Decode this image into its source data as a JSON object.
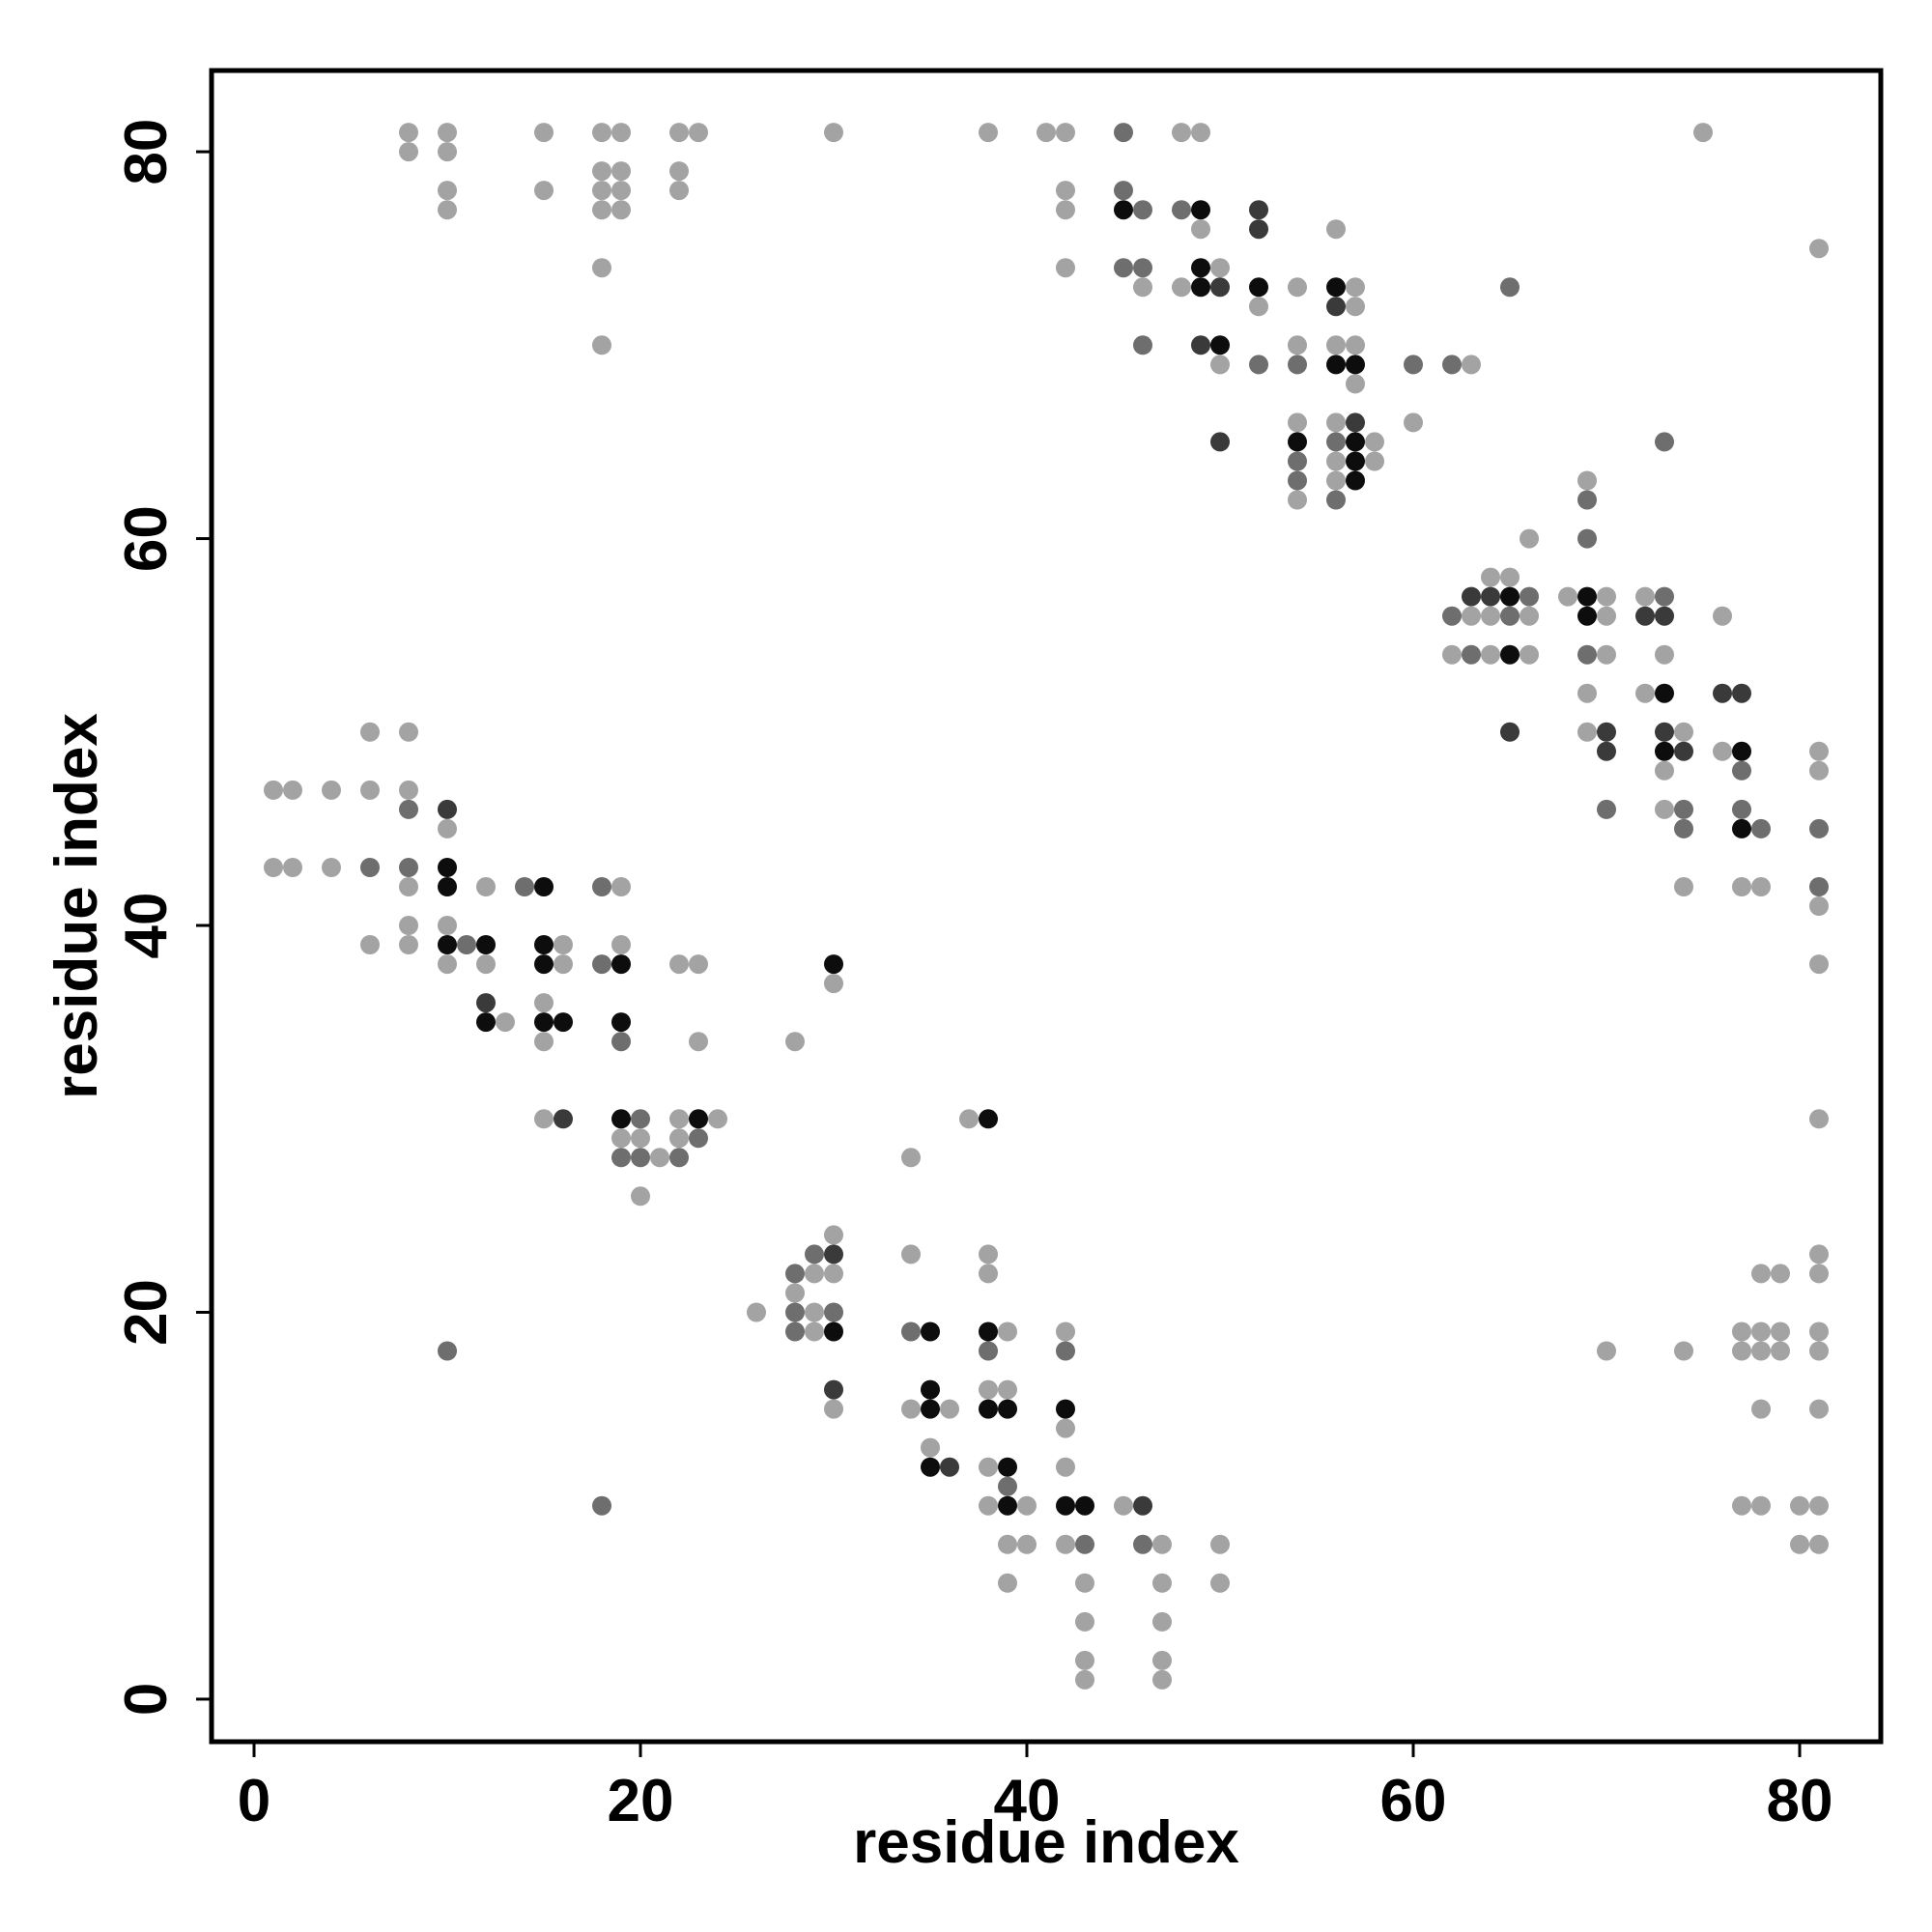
{
  "chart_data": {
    "type": "scatter",
    "title": "",
    "xlabel": "residue index",
    "ylabel": "residue index",
    "xlim": [
      -2.2,
      84.2
    ],
    "ylim": [
      -2.2,
      84.2
    ],
    "xticks": [
      0,
      20,
      40,
      60,
      80
    ],
    "yticks": [
      0,
      20,
      40,
      60,
      80
    ],
    "grid": false,
    "legend": "none",
    "colors": {
      "light": "#a3a3a3",
      "mid": "#6e6e6e",
      "dark": "#3a3a3a",
      "black": "#0d0d0d"
    },
    "points": [
      [
        1,
        47,
        "light"
      ],
      [
        2,
        47,
        "light"
      ],
      [
        4,
        47,
        "light"
      ],
      [
        6,
        47,
        "light"
      ],
      [
        8,
        47,
        "light"
      ],
      [
        1,
        43,
        "light"
      ],
      [
        2,
        43,
        "light"
      ],
      [
        4,
        43,
        "light"
      ],
      [
        6,
        43,
        "mid"
      ],
      [
        6,
        50,
        "light"
      ],
      [
        6,
        39,
        "light"
      ],
      [
        8,
        50,
        "light"
      ],
      [
        8,
        46,
        "mid"
      ],
      [
        8,
        43,
        "mid"
      ],
      [
        8,
        42,
        "light"
      ],
      [
        8,
        40,
        "light"
      ],
      [
        8,
        39,
        "light"
      ],
      [
        10,
        46,
        "dark"
      ],
      [
        10,
        45,
        "light"
      ],
      [
        10,
        43,
        "black"
      ],
      [
        10,
        42,
        "black"
      ],
      [
        10,
        40,
        "light"
      ],
      [
        10,
        39,
        "black"
      ],
      [
        10,
        38,
        "light"
      ],
      [
        11,
        39,
        "mid"
      ],
      [
        12,
        42,
        "light"
      ],
      [
        12,
        39,
        "black"
      ],
      [
        12,
        38,
        "light"
      ],
      [
        12,
        36,
        "dark"
      ],
      [
        12,
        35,
        "black"
      ],
      [
        13,
        35,
        "light"
      ],
      [
        14,
        42,
        "mid"
      ],
      [
        15,
        42,
        "black"
      ],
      [
        15,
        39,
        "black"
      ],
      [
        15,
        38,
        "black"
      ],
      [
        15,
        36,
        "light"
      ],
      [
        15,
        35,
        "black"
      ],
      [
        15,
        34,
        "light"
      ],
      [
        15,
        30,
        "light"
      ],
      [
        16,
        39,
        "light"
      ],
      [
        16,
        38,
        "light"
      ],
      [
        16,
        35,
        "black"
      ],
      [
        16,
        30,
        "dark"
      ],
      [
        18,
        42,
        "mid"
      ],
      [
        18,
        38,
        "mid"
      ],
      [
        19,
        42,
        "light"
      ],
      [
        19,
        39,
        "light"
      ],
      [
        19,
        38,
        "black"
      ],
      [
        19,
        35,
        "black"
      ],
      [
        19,
        34,
        "mid"
      ],
      [
        19,
        30,
        "black"
      ],
      [
        19,
        29,
        "light"
      ],
      [
        19,
        28,
        "mid"
      ],
      [
        20,
        30,
        "mid"
      ],
      [
        20,
        29,
        "light"
      ],
      [
        20,
        28,
        "mid"
      ],
      [
        20,
        26,
        "light"
      ],
      [
        21,
        28,
        "light"
      ],
      [
        22,
        38,
        "light"
      ],
      [
        22,
        30,
        "light"
      ],
      [
        22,
        29,
        "light"
      ],
      [
        22,
        28,
        "mid"
      ],
      [
        23,
        38,
        "light"
      ],
      [
        23,
        34,
        "light"
      ],
      [
        23,
        30,
        "black"
      ],
      [
        23,
        29,
        "mid"
      ],
      [
        24,
        30,
        "light"
      ],
      [
        26,
        20,
        "light"
      ],
      [
        28,
        34,
        "light"
      ],
      [
        28,
        22,
        "mid"
      ],
      [
        28,
        21,
        "light"
      ],
      [
        28,
        20,
        "mid"
      ],
      [
        28,
        19,
        "mid"
      ],
      [
        29,
        23,
        "mid"
      ],
      [
        29,
        22,
        "light"
      ],
      [
        29,
        20,
        "light"
      ],
      [
        29,
        19,
        "light"
      ],
      [
        30,
        38,
        "black"
      ],
      [
        30,
        37,
        "light"
      ],
      [
        30,
        24,
        "light"
      ],
      [
        30,
        23,
        "dark"
      ],
      [
        30,
        22,
        "light"
      ],
      [
        30,
        20,
        "mid"
      ],
      [
        30,
        19,
        "black"
      ],
      [
        30,
        16,
        "dark"
      ],
      [
        30,
        15,
        "light"
      ],
      [
        34,
        28,
        "light"
      ],
      [
        34,
        23,
        "light"
      ],
      [
        34,
        19,
        "mid"
      ],
      [
        34,
        15,
        "light"
      ],
      [
        35,
        19,
        "black"
      ],
      [
        35,
        16,
        "black"
      ],
      [
        35,
        15,
        "black"
      ],
      [
        35,
        13,
        "light"
      ],
      [
        35,
        12,
        "black"
      ],
      [
        36,
        15,
        "light"
      ],
      [
        36,
        12,
        "dark"
      ],
      [
        37,
        30,
        "light"
      ],
      [
        38,
        30,
        "black"
      ],
      [
        38,
        23,
        "light"
      ],
      [
        38,
        22,
        "light"
      ],
      [
        38,
        19,
        "black"
      ],
      [
        38,
        18,
        "mid"
      ],
      [
        38,
        16,
        "light"
      ],
      [
        38,
        15,
        "black"
      ],
      [
        38,
        12,
        "light"
      ],
      [
        38,
        10,
        "light"
      ],
      [
        39,
        19,
        "light"
      ],
      [
        39,
        16,
        "light"
      ],
      [
        39,
        15,
        "black"
      ],
      [
        39,
        12,
        "black"
      ],
      [
        39,
        11,
        "mid"
      ],
      [
        39,
        10,
        "black"
      ],
      [
        39,
        8,
        "light"
      ],
      [
        39,
        6,
        "light"
      ],
      [
        40,
        10,
        "light"
      ],
      [
        40,
        8,
        "light"
      ],
      [
        42,
        19,
        "light"
      ],
      [
        42,
        18,
        "mid"
      ],
      [
        42,
        15,
        "black"
      ],
      [
        42,
        14,
        "light"
      ],
      [
        42,
        12,
        "light"
      ],
      [
        42,
        10,
        "black"
      ],
      [
        42,
        8,
        "light"
      ],
      [
        43,
        10,
        "black"
      ],
      [
        43,
        8,
        "mid"
      ],
      [
        43,
        6,
        "light"
      ],
      [
        43,
        4,
        "light"
      ],
      [
        43,
        2,
        "light"
      ],
      [
        43,
        1,
        "light"
      ],
      [
        45,
        10,
        "light"
      ],
      [
        46,
        10,
        "dark"
      ],
      [
        46,
        8,
        "mid"
      ],
      [
        47,
        8,
        "light"
      ],
      [
        47,
        6,
        "light"
      ],
      [
        47,
        4,
        "light"
      ],
      [
        47,
        2,
        "light"
      ],
      [
        47,
        1,
        "light"
      ],
      [
        50,
        8,
        "light"
      ],
      [
        50,
        6,
        "light"
      ],
      [
        10,
        18,
        "mid"
      ],
      [
        18,
        10,
        "mid"
      ],
      [
        8,
        81,
        "light"
      ],
      [
        8,
        80,
        "light"
      ],
      [
        10,
        81,
        "light"
      ],
      [
        10,
        80,
        "light"
      ],
      [
        10,
        78,
        "light"
      ],
      [
        10,
        77,
        "light"
      ],
      [
        15,
        81,
        "light"
      ],
      [
        15,
        78,
        "light"
      ],
      [
        18,
        81,
        "light"
      ],
      [
        18,
        79,
        "light"
      ],
      [
        18,
        78,
        "light"
      ],
      [
        18,
        77,
        "light"
      ],
      [
        18,
        74,
        "light"
      ],
      [
        18,
        70,
        "light"
      ],
      [
        19,
        81,
        "light"
      ],
      [
        19,
        79,
        "light"
      ],
      [
        19,
        78,
        "light"
      ],
      [
        19,
        77,
        "light"
      ],
      [
        22,
        81,
        "light"
      ],
      [
        22,
        79,
        "light"
      ],
      [
        22,
        78,
        "light"
      ],
      [
        23,
        81,
        "light"
      ],
      [
        30,
        81,
        "light"
      ],
      [
        38,
        81,
        "light"
      ],
      [
        41,
        81,
        "light"
      ],
      [
        42,
        81,
        "light"
      ],
      [
        45,
        81,
        "mid"
      ],
      [
        48,
        81,
        "light"
      ],
      [
        49,
        81,
        "light"
      ],
      [
        75,
        81,
        "light"
      ],
      [
        42,
        78,
        "light"
      ],
      [
        42,
        77,
        "light"
      ],
      [
        42,
        74,
        "light"
      ],
      [
        45,
        78,
        "mid"
      ],
      [
        45,
        77,
        "black"
      ],
      [
        45,
        74,
        "mid"
      ],
      [
        46,
        77,
        "mid"
      ],
      [
        46,
        74,
        "mid"
      ],
      [
        46,
        73,
        "light"
      ],
      [
        46,
        70,
        "mid"
      ],
      [
        48,
        77,
        "mid"
      ],
      [
        48,
        73,
        "light"
      ],
      [
        49,
        77,
        "black"
      ],
      [
        49,
        76,
        "light"
      ],
      [
        49,
        74,
        "black"
      ],
      [
        49,
        73,
        "black"
      ],
      [
        49,
        70,
        "dark"
      ],
      [
        50,
        74,
        "light"
      ],
      [
        50,
        73,
        "dark"
      ],
      [
        50,
        70,
        "black"
      ],
      [
        50,
        69,
        "light"
      ],
      [
        50,
        65,
        "dark"
      ],
      [
        52,
        77,
        "dark"
      ],
      [
        52,
        76,
        "dark"
      ],
      [
        52,
        73,
        "black"
      ],
      [
        52,
        72,
        "light"
      ],
      [
        52,
        69,
        "mid"
      ],
      [
        54,
        73,
        "light"
      ],
      [
        54,
        70,
        "light"
      ],
      [
        54,
        69,
        "mid"
      ],
      [
        54,
        66,
        "light"
      ],
      [
        54,
        65,
        "black"
      ],
      [
        54,
        64,
        "mid"
      ],
      [
        54,
        63,
        "mid"
      ],
      [
        54,
        62,
        "light"
      ],
      [
        56,
        76,
        "light"
      ],
      [
        56,
        73,
        "black"
      ],
      [
        56,
        72,
        "dark"
      ],
      [
        56,
        70,
        "light"
      ],
      [
        56,
        69,
        "black"
      ],
      [
        56,
        66,
        "light"
      ],
      [
        56,
        65,
        "mid"
      ],
      [
        56,
        64,
        "light"
      ],
      [
        56,
        63,
        "light"
      ],
      [
        56,
        62,
        "mid"
      ],
      [
        57,
        73,
        "light"
      ],
      [
        57,
        72,
        "light"
      ],
      [
        57,
        70,
        "light"
      ],
      [
        57,
        69,
        "black"
      ],
      [
        57,
        68,
        "light"
      ],
      [
        57,
        66,
        "dark"
      ],
      [
        57,
        65,
        "black"
      ],
      [
        57,
        64,
        "black"
      ],
      [
        57,
        63,
        "black"
      ],
      [
        58,
        65,
        "light"
      ],
      [
        58,
        64,
        "light"
      ],
      [
        60,
        69,
        "mid"
      ],
      [
        60,
        66,
        "light"
      ],
      [
        62,
        69,
        "mid"
      ],
      [
        63,
        69,
        "light"
      ],
      [
        65,
        73,
        "mid"
      ],
      [
        62,
        56,
        "mid"
      ],
      [
        62,
        54,
        "light"
      ],
      [
        63,
        57,
        "dark"
      ],
      [
        63,
        56,
        "light"
      ],
      [
        63,
        54,
        "mid"
      ],
      [
        64,
        58,
        "light"
      ],
      [
        64,
        57,
        "dark"
      ],
      [
        64,
        56,
        "light"
      ],
      [
        64,
        54,
        "light"
      ],
      [
        65,
        58,
        "light"
      ],
      [
        65,
        57,
        "black"
      ],
      [
        65,
        56,
        "mid"
      ],
      [
        65,
        54,
        "black"
      ],
      [
        65,
        50,
        "dark"
      ],
      [
        66,
        60,
        "light"
      ],
      [
        66,
        57,
        "mid"
      ],
      [
        66,
        56,
        "light"
      ],
      [
        66,
        54,
        "light"
      ],
      [
        68,
        57,
        "light"
      ],
      [
        69,
        63,
        "light"
      ],
      [
        69,
        62,
        "mid"
      ],
      [
        69,
        60,
        "mid"
      ],
      [
        69,
        57,
        "black"
      ],
      [
        69,
        56,
        "black"
      ],
      [
        69,
        54,
        "mid"
      ],
      [
        69,
        52,
        "light"
      ],
      [
        69,
        50,
        "light"
      ],
      [
        70,
        57,
        "light"
      ],
      [
        70,
        56,
        "light"
      ],
      [
        70,
        54,
        "light"
      ],
      [
        70,
        50,
        "dark"
      ],
      [
        70,
        49,
        "dark"
      ],
      [
        70,
        46,
        "mid"
      ],
      [
        72,
        57,
        "light"
      ],
      [
        72,
        56,
        "dark"
      ],
      [
        72,
        52,
        "light"
      ],
      [
        73,
        65,
        "mid"
      ],
      [
        73,
        57,
        "mid"
      ],
      [
        73,
        56,
        "dark"
      ],
      [
        73,
        54,
        "light"
      ],
      [
        73,
        52,
        "black"
      ],
      [
        73,
        50,
        "dark"
      ],
      [
        73,
        49,
        "black"
      ],
      [
        73,
        48,
        "light"
      ],
      [
        73,
        46,
        "light"
      ],
      [
        74,
        50,
        "light"
      ],
      [
        74,
        49,
        "dark"
      ],
      [
        74,
        46,
        "mid"
      ],
      [
        74,
        45,
        "mid"
      ],
      [
        74,
        42,
        "light"
      ],
      [
        76,
        56,
        "light"
      ],
      [
        76,
        52,
        "dark"
      ],
      [
        76,
        49,
        "light"
      ],
      [
        77,
        52,
        "dark"
      ],
      [
        77,
        49,
        "black"
      ],
      [
        77,
        48,
        "mid"
      ],
      [
        77,
        46,
        "mid"
      ],
      [
        77,
        45,
        "black"
      ],
      [
        77,
        42,
        "light"
      ],
      [
        78,
        45,
        "mid"
      ],
      [
        78,
        42,
        "light"
      ],
      [
        81,
        75,
        "light"
      ],
      [
        81,
        49,
        "light"
      ],
      [
        81,
        48,
        "light"
      ],
      [
        81,
        45,
        "mid"
      ],
      [
        81,
        42,
        "mid"
      ],
      [
        81,
        41,
        "light"
      ],
      [
        81,
        38,
        "light"
      ],
      [
        81,
        30,
        "light"
      ],
      [
        70,
        18,
        "light"
      ],
      [
        74,
        18,
        "light"
      ],
      [
        77,
        19,
        "light"
      ],
      [
        77,
        18,
        "light"
      ],
      [
        77,
        10,
        "light"
      ],
      [
        78,
        22,
        "light"
      ],
      [
        78,
        19,
        "light"
      ],
      [
        78,
        18,
        "light"
      ],
      [
        78,
        15,
        "light"
      ],
      [
        78,
        10,
        "light"
      ],
      [
        79,
        22,
        "light"
      ],
      [
        79,
        19,
        "light"
      ],
      [
        79,
        18,
        "light"
      ],
      [
        80,
        10,
        "light"
      ],
      [
        80,
        8,
        "light"
      ],
      [
        81,
        23,
        "light"
      ],
      [
        81,
        22,
        "light"
      ],
      [
        81,
        19,
        "light"
      ],
      [
        81,
        18,
        "light"
      ],
      [
        81,
        15,
        "light"
      ],
      [
        81,
        10,
        "light"
      ],
      [
        81,
        8,
        "light"
      ]
    ]
  }
}
